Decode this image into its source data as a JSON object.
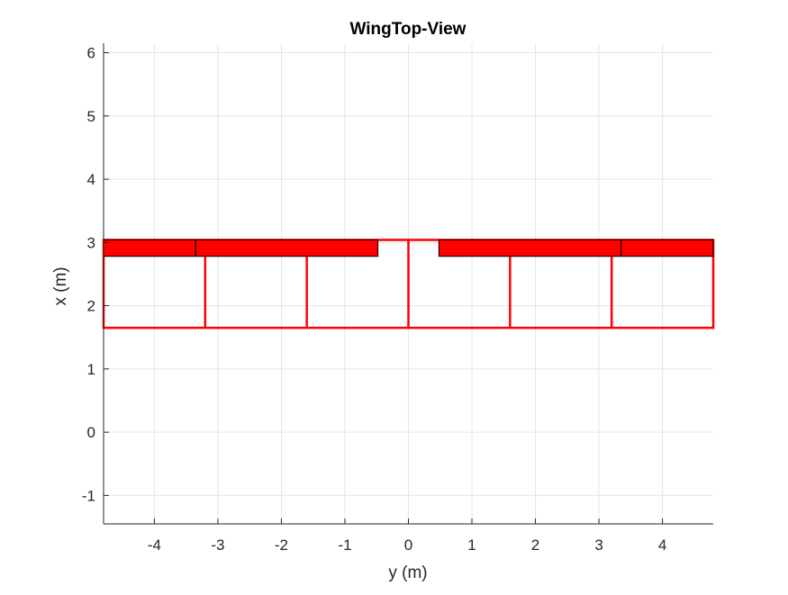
{
  "chart_data": {
    "type": "line",
    "title": "WingTop-View",
    "xlabel": "y (m)",
    "ylabel": "x (m)",
    "xlim": [
      -4.8,
      4.8
    ],
    "ylim": [
      -1.45,
      6.15
    ],
    "xticks": [
      -4,
      -3,
      -2,
      -1,
      0,
      1,
      2,
      3,
      4
    ],
    "yticks": [
      -1,
      0,
      1,
      2,
      3,
      4,
      5,
      6
    ],
    "xtick_labels": [
      "-4",
      "-3",
      "-2",
      "-1",
      "0",
      "1",
      "2",
      "3",
      "4"
    ],
    "ytick_labels": [
      "-1",
      "0",
      "1",
      "2",
      "3",
      "4",
      "5",
      "6"
    ],
    "grid": true,
    "colors": {
      "wing_outline": "#ff0000",
      "control_surface_fill": "#ff0000",
      "control_surface_edge": "#000000",
      "grid": "#e6e6e6",
      "axis": "#262626"
    },
    "wing": {
      "span_limits": [
        -4.8,
        4.8
      ],
      "leading_edge_x": 3.04,
      "trailing_edge_x": 1.65,
      "panel_stations_y": [
        -4.8,
        -3.2,
        -1.6,
        0,
        1.6,
        3.2,
        4.8
      ]
    },
    "control_surfaces": [
      {
        "y": [
          -4.8,
          -3.35
        ],
        "x": [
          2.78,
          3.04
        ]
      },
      {
        "y": [
          -3.35,
          -0.48
        ],
        "x": [
          2.78,
          3.04
        ]
      },
      {
        "y": [
          0.48,
          3.35
        ],
        "x": [
          2.78,
          3.04
        ]
      },
      {
        "y": [
          3.35,
          4.8
        ],
        "x": [
          2.78,
          3.04
        ]
      }
    ]
  }
}
